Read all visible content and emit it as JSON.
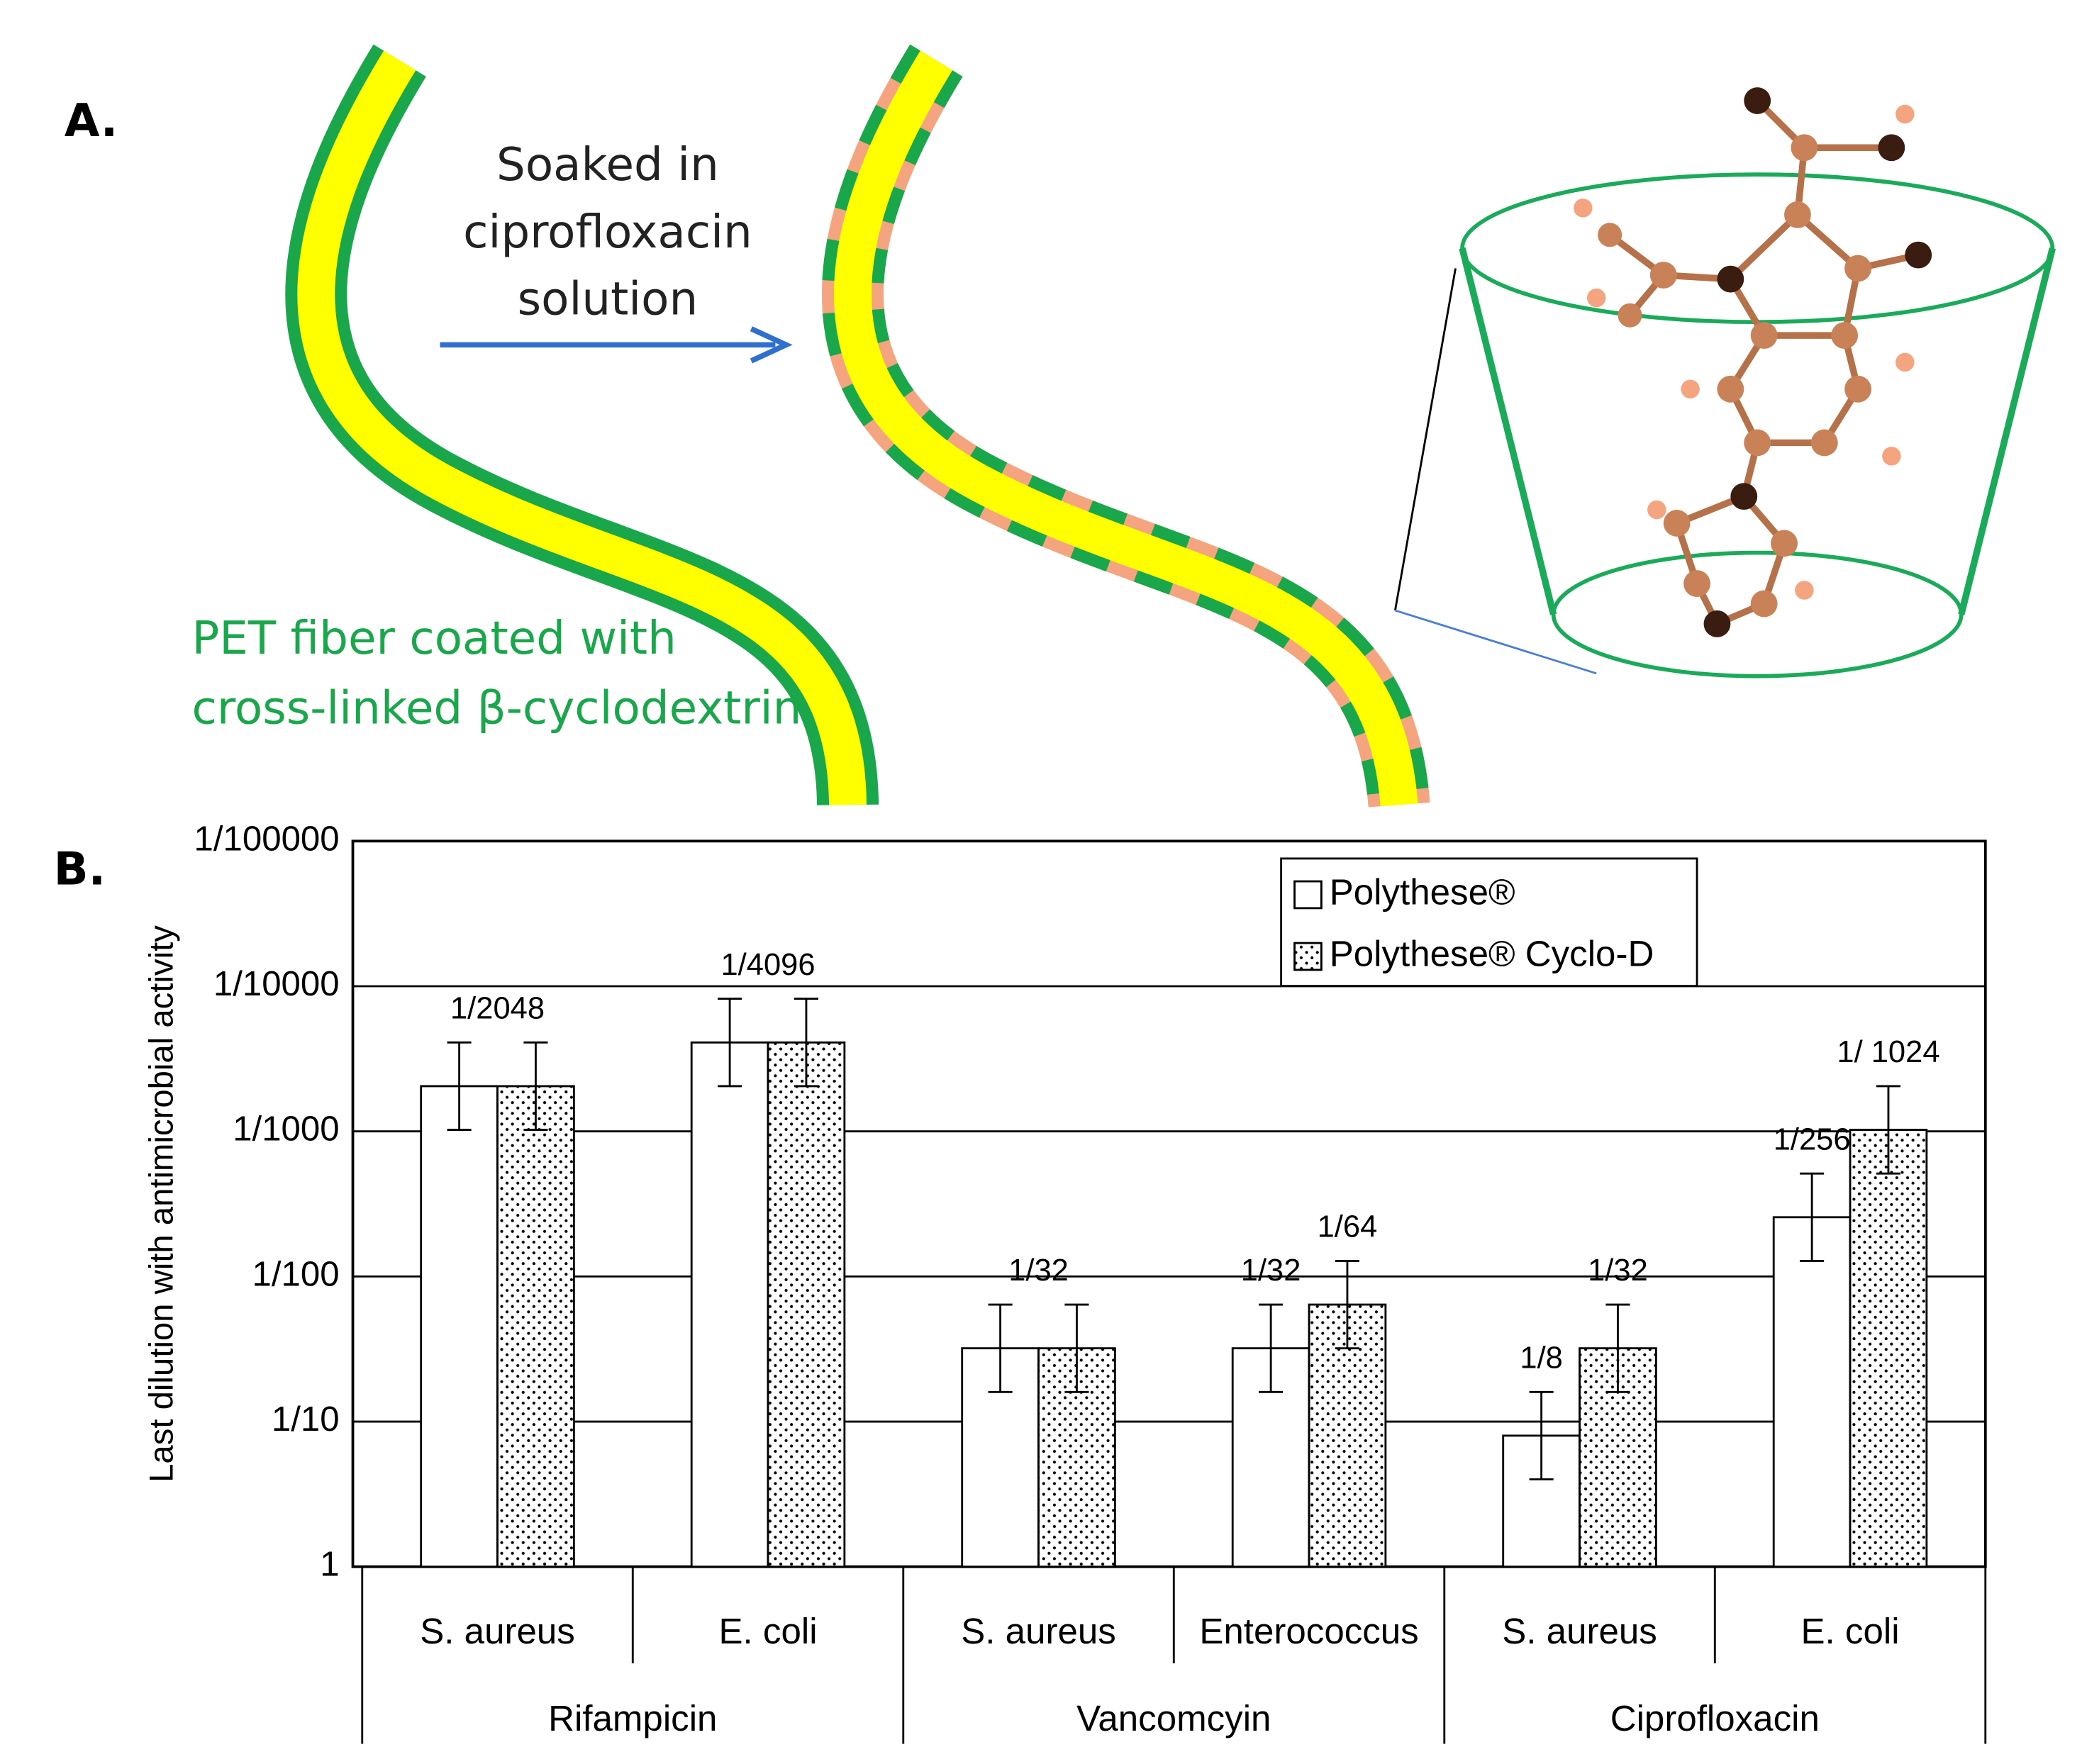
{
  "panel_a": {
    "label": "A.",
    "arrow_label": [
      "Soaked in",
      "ciprofloxacin",
      "solution"
    ],
    "fiber_label": [
      "PET fiber coated with",
      "cross-linked β-cyclodextrin"
    ]
  },
  "panel_b": {
    "label": "B."
  },
  "chart_data": {
    "type": "bar",
    "log_y": true,
    "grid": true,
    "y_label": "Last dilution with antimicrobial activity",
    "groups": [
      "Rifampicin",
      "Vancomcyin",
      "Ciprofloxacin"
    ],
    "categories": [
      "S. aureus",
      "E. coli",
      "S. aureus",
      "Enterococcus",
      "S. aureus",
      "E. coli"
    ],
    "ylim": [
      1,
      100000
    ],
    "yticks": [
      1,
      {
        "value": 10,
        "label": "1/10"
      },
      {
        "value": 100,
        "label": "1/100"
      },
      {
        "value": 1000,
        "label": "1/1000"
      },
      {
        "value": 10000,
        "label": "1/10000"
      },
      {
        "value": 100000,
        "label": "1/100000"
      }
    ],
    "legend": "top-right",
    "series": [
      {
        "name": "Polythese®",
        "color": "#ffffff",
        "pattern": "none",
        "values": [
          2048,
          4096,
          32,
          32,
          8,
          256
        ],
        "error_lower": [
          1024,
          2048,
          16,
          16,
          4,
          128
        ],
        "error_upper": [
          4096,
          8192,
          64,
          64,
          16,
          512
        ],
        "value_labels": [
          "1/2048",
          "1/4096",
          "1/32",
          "1/32",
          "1/8",
          "1/256"
        ]
      },
      {
        "name": "Polythese® Cyclo-D",
        "color": "#ffffff",
        "pattern": "dots",
        "values": [
          2048,
          4096,
          32,
          64,
          32,
          1024
        ],
        "error_lower": [
          1024,
          2048,
          16,
          32,
          16,
          512
        ],
        "error_upper": [
          4096,
          8192,
          64,
          128,
          64,
          2048
        ],
        "value_labels": [
          null,
          null,
          null,
          "1/64",
          "1/32",
          "1/ 1024"
        ]
      }
    ]
  }
}
